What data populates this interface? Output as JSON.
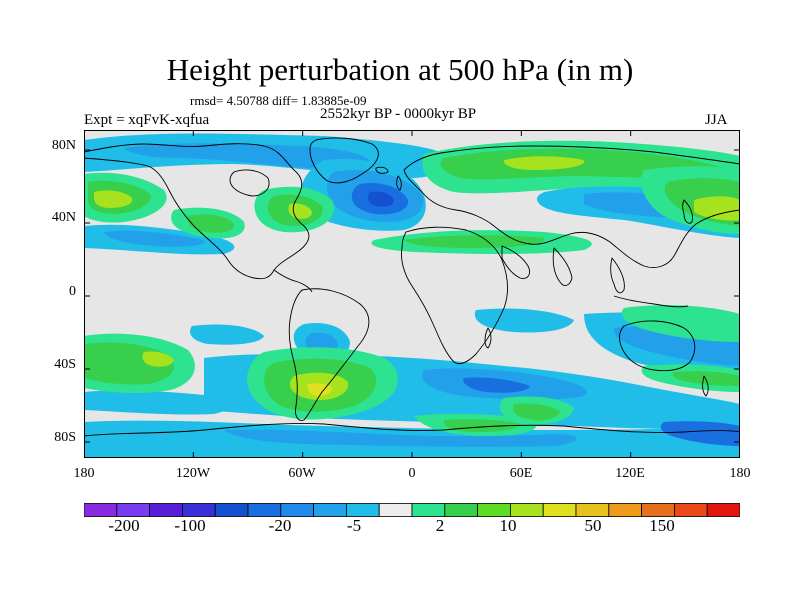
{
  "title": "Height perturbation at 500 hPa (in m)",
  "stats": "rmsd= 4.50788 diff= 1.83885e-09",
  "experiment": "Expt = xqFvK-xqfua",
  "period": "2552kyr BP - 0000kyr BP",
  "season": "JJA",
  "map": {
    "lat_ticks": [
      "80N",
      "40N",
      "0",
      "40S",
      "80S"
    ],
    "lon_ticks": [
      "180",
      "120W",
      "60W",
      "0",
      "60E",
      "120E",
      "180"
    ]
  },
  "colorbar": {
    "colors": [
      "#8a2be2",
      "#7a3cf0",
      "#5a1ed8",
      "#3a30d8",
      "#1450d0",
      "#1a6fe0",
      "#1f8ae8",
      "#22a0ea",
      "#1fbde8",
      "#ececec",
      "#2ee38f",
      "#37cf4c",
      "#5cdd23",
      "#a6e21e",
      "#e0e020",
      "#e7c21f",
      "#ee9a1d",
      "#e5701c",
      "#ea4a18",
      "#e3160f"
    ],
    "labels": [
      "-200",
      "-100",
      "-20",
      "-5",
      "2",
      "10",
      "50",
      "150"
    ]
  },
  "field_colors": {
    "background": "#e6e6e6",
    "weak_neg": "#1fbde8",
    "mid_neg": "#22a0ea",
    "strong_neg": "#1a6fe0",
    "very_strong_neg": "#1450d0",
    "weak_pos": "#2ee38f",
    "mid_pos": "#37cf4c",
    "strong_pos": "#a6e21e",
    "very_strong_pos": "#e0e020"
  }
}
